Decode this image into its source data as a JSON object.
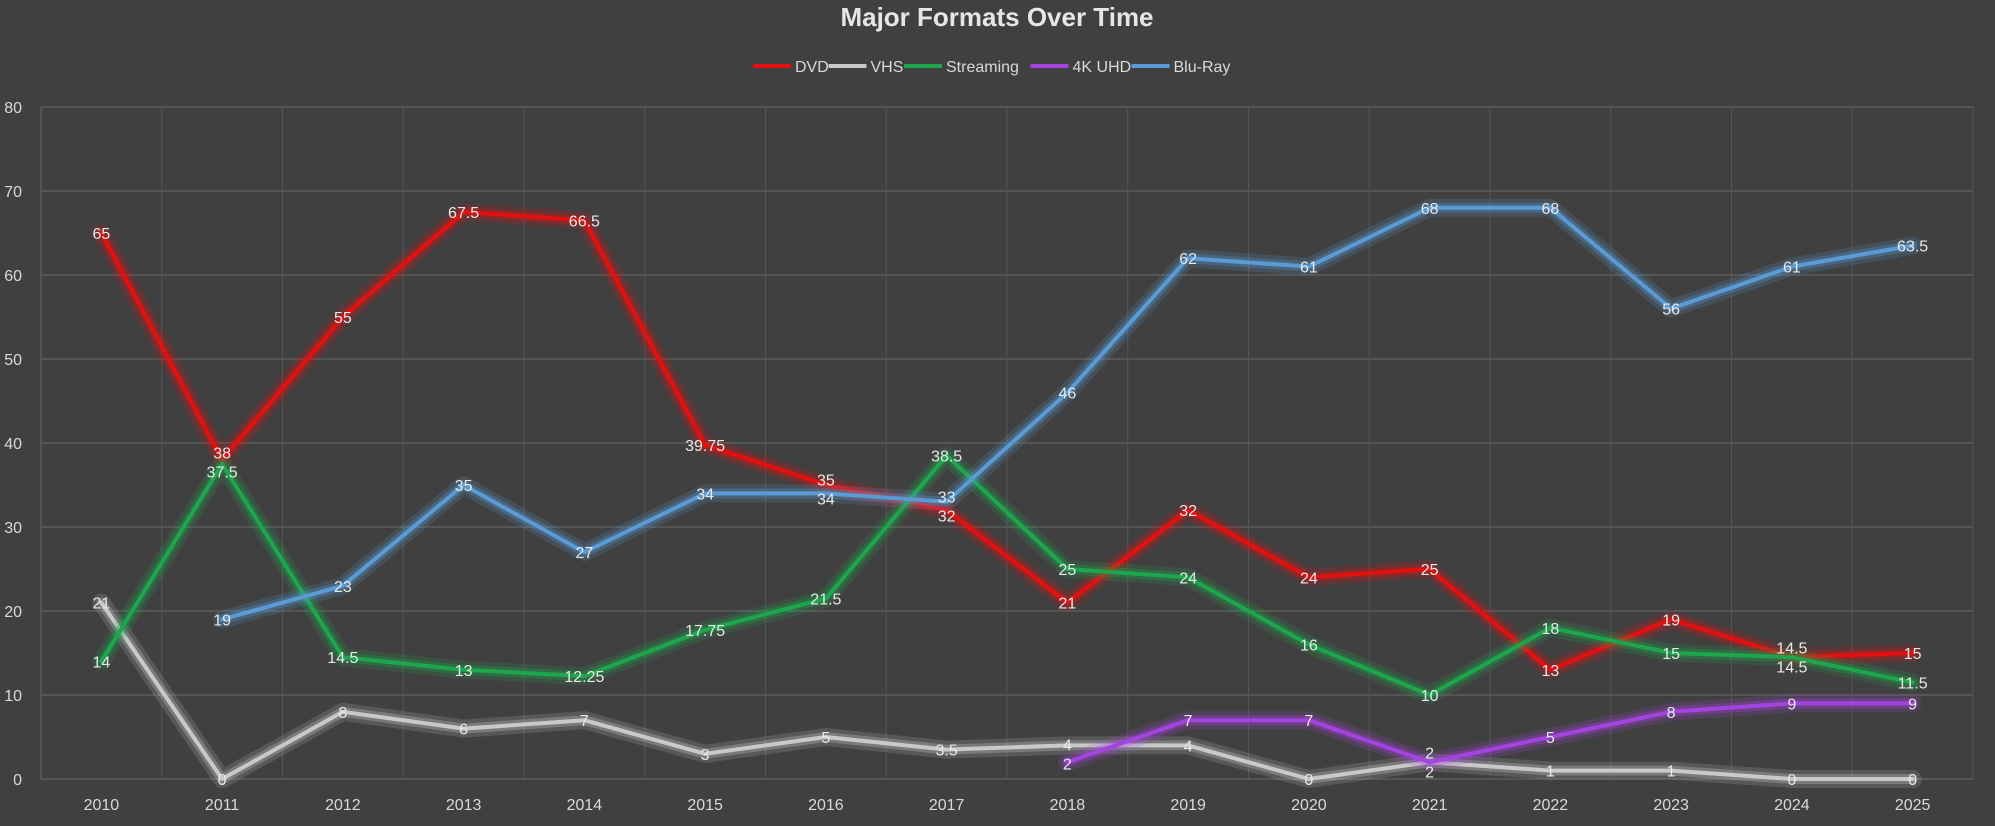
{
  "chart_data": {
    "type": "line",
    "title": "Major Formats Over Time",
    "xlabel": "",
    "ylabel": "",
    "ylim": [
      0,
      80
    ],
    "yticks": [
      0,
      10,
      20,
      30,
      40,
      50,
      60,
      70,
      80
    ],
    "grid": true,
    "legend_position": "top",
    "background": "#404040",
    "categories": [
      "2010",
      "2011",
      "2012",
      "2013",
      "2014",
      "2015",
      "2016",
      "2017",
      "2018",
      "2019",
      "2020",
      "2021",
      "2022",
      "2023",
      "2024",
      "2025"
    ],
    "series": [
      {
        "name": "DVD",
        "color": "#e41010",
        "values": [
          65,
          38,
          55,
          67.5,
          66.5,
          39.75,
          35,
          32,
          21,
          32,
          24,
          25,
          13,
          19,
          14.5,
          15
        ]
      },
      {
        "name": "VHS",
        "color": "#c9c9c9",
        "values": [
          21,
          0,
          8,
          6,
          7,
          3,
          5,
          3.5,
          4,
          4,
          0,
          2,
          1,
          1,
          0,
          0
        ]
      },
      {
        "name": "Streaming",
        "color": "#1ea64c",
        "values": [
          14,
          37.5,
          14.5,
          13,
          12.25,
          17.75,
          21.5,
          38.5,
          25,
          24,
          16,
          10,
          18,
          15,
          14.5,
          11.5
        ]
      },
      {
        "name": "4K UHD",
        "color": "#a444e0",
        "values": [
          null,
          null,
          null,
          null,
          null,
          null,
          null,
          null,
          2,
          7,
          7,
          2,
          5,
          8,
          9,
          9
        ]
      },
      {
        "name": "Blu-Ray",
        "color": "#5b9bd5",
        "values": [
          null,
          19,
          23,
          35,
          27,
          34,
          34,
          33,
          46,
          62,
          61,
          68,
          68,
          56,
          61,
          63.5
        ]
      }
    ]
  }
}
